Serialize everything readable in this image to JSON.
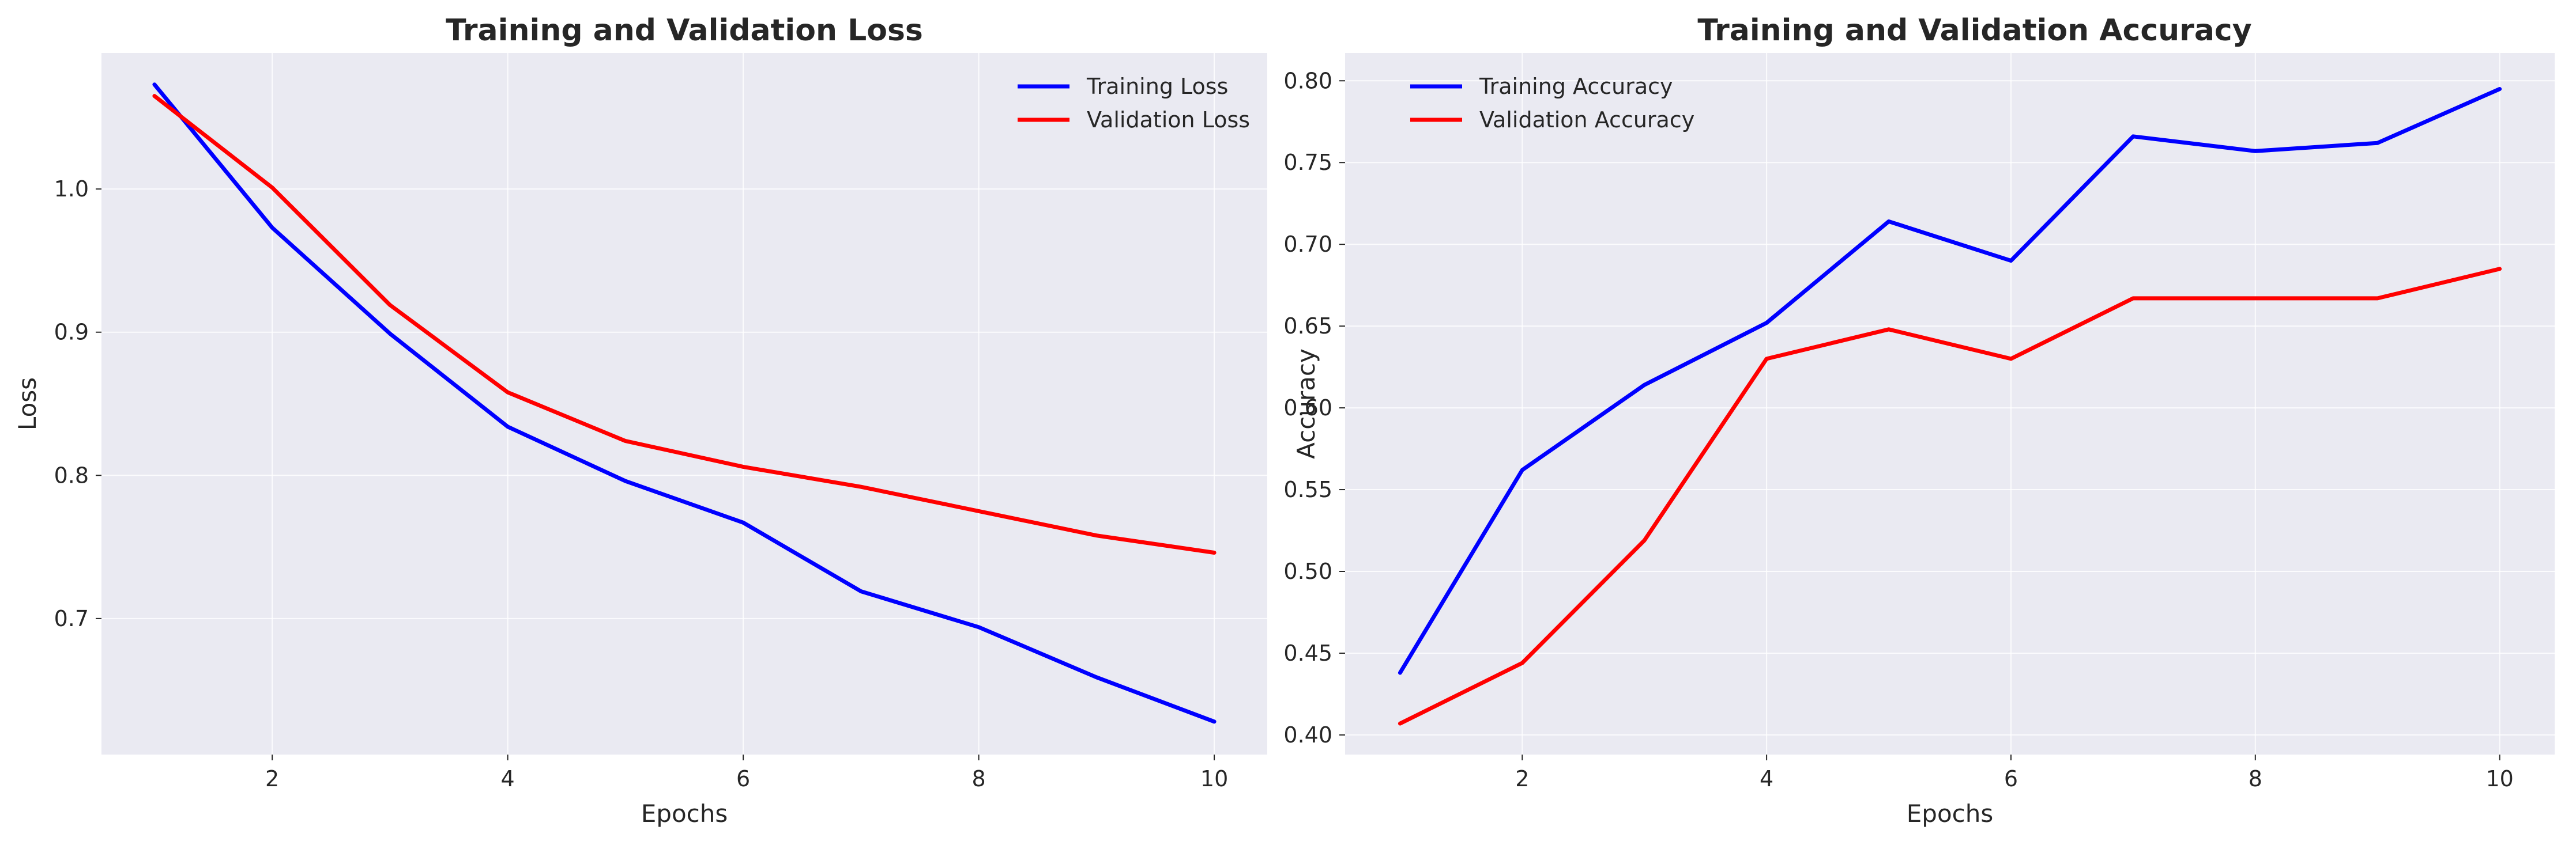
{
  "chart_data": [
    {
      "type": "line",
      "title": "Training and Validation Loss",
      "xlabel": "Epochs",
      "ylabel": "Loss",
      "x": [
        1,
        2,
        3,
        4,
        5,
        6,
        7,
        8,
        9,
        10
      ],
      "xlim": [
        0.55,
        10.45
      ],
      "ylim": [
        0.605,
        1.095
      ],
      "xticks": [
        2,
        4,
        6,
        8,
        10
      ],
      "xtick_labels": [
        "2",
        "4",
        "6",
        "8",
        "10"
      ],
      "yticks": [
        0.7,
        0.8,
        0.9,
        1.0
      ],
      "ytick_labels": [
        "0.7",
        "0.8",
        "0.9",
        "1.0"
      ],
      "grid": true,
      "legend_position": "top-right",
      "series": [
        {
          "name": "Training Loss",
          "color": "#0000ff",
          "values": [
            1.073,
            0.973,
            0.899,
            0.834,
            0.796,
            0.767,
            0.719,
            0.694,
            0.659,
            0.628
          ]
        },
        {
          "name": "Validation Loss",
          "color": "#ff0000",
          "values": [
            1.065,
            1.001,
            0.919,
            0.858,
            0.824,
            0.806,
            0.792,
            0.775,
            0.758,
            0.746
          ]
        }
      ]
    },
    {
      "type": "line",
      "title": "Training and Validation Accuracy",
      "xlabel": "Epochs",
      "ylabel": "Accuracy",
      "x": [
        1,
        2,
        3,
        4,
        5,
        6,
        7,
        8,
        9,
        10
      ],
      "xlim": [
        0.55,
        10.45
      ],
      "ylim": [
        0.388,
        0.817
      ],
      "xticks": [
        2,
        4,
        6,
        8,
        10
      ],
      "xtick_labels": [
        "2",
        "4",
        "6",
        "8",
        "10"
      ],
      "yticks": [
        0.4,
        0.45,
        0.5,
        0.55,
        0.6,
        0.65,
        0.7,
        0.75,
        0.8
      ],
      "ytick_labels": [
        "0.40",
        "0.45",
        "0.50",
        "0.55",
        "0.60",
        "0.65",
        "0.70",
        "0.75",
        "0.80"
      ],
      "grid": true,
      "legend_position": "top-left",
      "series": [
        {
          "name": "Training Accuracy",
          "color": "#0000ff",
          "values": [
            0.438,
            0.562,
            0.614,
            0.652,
            0.714,
            0.69,
            0.766,
            0.757,
            0.762,
            0.795
          ]
        },
        {
          "name": "Validation Accuracy",
          "color": "#ff0000",
          "values": [
            0.407,
            0.444,
            0.519,
            0.63,
            0.648,
            0.63,
            0.667,
            0.667,
            0.667,
            0.685
          ]
        }
      ]
    }
  ]
}
